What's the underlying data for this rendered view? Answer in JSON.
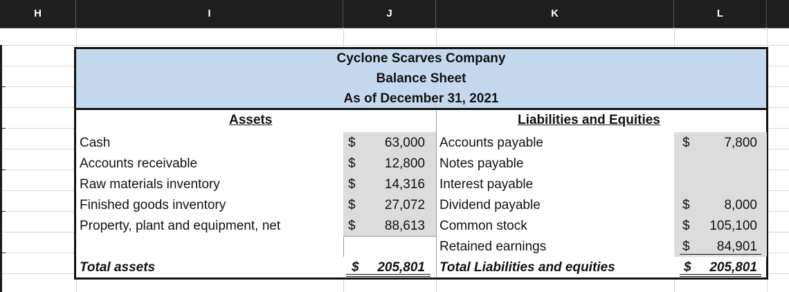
{
  "columns": [
    "H",
    "I",
    "J",
    "K",
    "L"
  ],
  "report": {
    "company": "Cyclone Scarves Company",
    "statement": "Balance Sheet",
    "date": "As of December 31, 2021"
  },
  "assets": {
    "heading": "Assets",
    "currency": "$",
    "items": [
      {
        "label": "Cash",
        "value": "63,000"
      },
      {
        "label": "Accounts receivable",
        "value": "12,800"
      },
      {
        "label": "Raw materials inventory",
        "value": "14,316"
      },
      {
        "label": "Finished goods inventory",
        "value": "27,072"
      },
      {
        "label": "Property, plant and equipment, net",
        "value": "88,613"
      }
    ],
    "total_label": "Total assets",
    "total_value": "205,801"
  },
  "liabilities": {
    "heading": "Liabilities and Equities",
    "currency": "$",
    "items": [
      {
        "label": "Accounts payable",
        "value": "7,800"
      },
      {
        "label": "Notes payable",
        "value": ""
      },
      {
        "label": "Interest payable",
        "value": ""
      },
      {
        "label": "Dividend payable",
        "value": "8,000"
      },
      {
        "label": "Common stock",
        "value": "105,100"
      },
      {
        "label": "Retained earnings",
        "value": "84,901"
      }
    ],
    "total_label": "Total Liabilities and equities",
    "total_value": "205,801"
  }
}
